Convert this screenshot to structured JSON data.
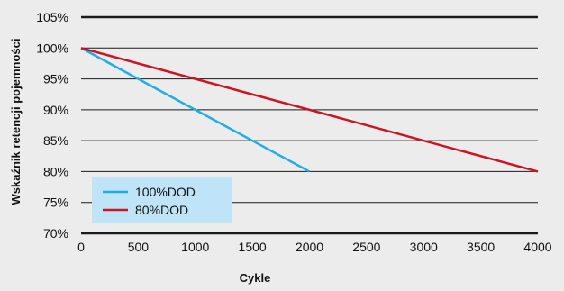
{
  "chart_data": {
    "type": "line",
    "xlabel": "Cykle",
    "ylabel": "Wskaźnik retencji pojemności",
    "xlim": [
      0,
      4000
    ],
    "ylim": [
      70,
      105
    ],
    "x_ticks": [
      0,
      500,
      1000,
      1500,
      2000,
      2500,
      3000,
      3500,
      4000
    ],
    "y_ticks": [
      70,
      75,
      80,
      85,
      90,
      95,
      100,
      105
    ],
    "y_tick_labels": [
      "70%",
      "75%",
      "80%",
      "85%",
      "90%",
      "95%",
      "100%",
      "105%"
    ],
    "grid": "horizontal",
    "legend_position": "lower-left",
    "series": [
      {
        "name": "100%DOD",
        "color": "#1eaee6",
        "x": [
          0,
          2000
        ],
        "y": [
          100,
          80
        ]
      },
      {
        "name": "80%DOD",
        "color": "#cc1422",
        "x": [
          0,
          4000
        ],
        "y": [
          100,
          80
        ]
      }
    ],
    "legend_bg": "#bfe3f7"
  }
}
